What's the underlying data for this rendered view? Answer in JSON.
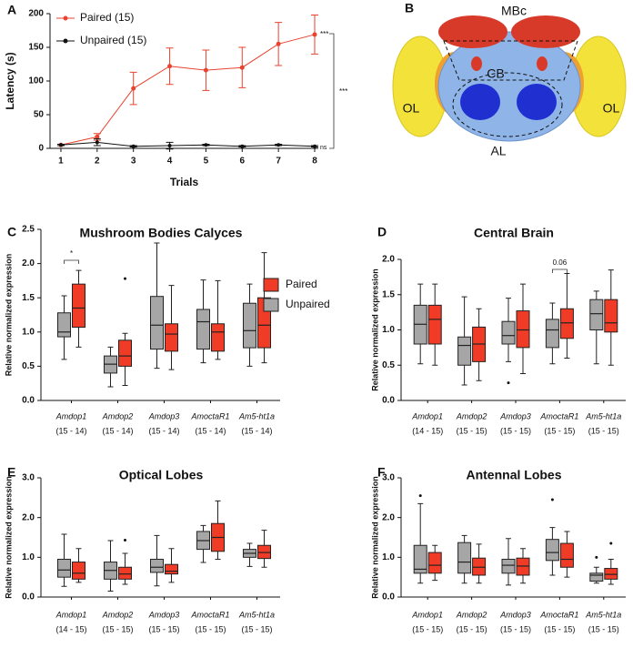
{
  "chart_data": [
    {
      "type": "line",
      "panel": "A",
      "xlabel": "Trials",
      "ylabel": "Latency (s)",
      "x": [
        1,
        2,
        3,
        4,
        5,
        6,
        7,
        8
      ],
      "xlim": [
        0.7,
        8.1
      ],
      "xticks": [
        1,
        2,
        3,
        4,
        5,
        6,
        7,
        8
      ],
      "ylim": [
        0,
        200
      ],
      "yticks": [
        0,
        50,
        100,
        150,
        200
      ],
      "legend": "top-left",
      "series": [
        {
          "name": "Paired (15)",
          "color": "#e8432f",
          "values": [
            5,
            17,
            89,
            122,
            116,
            120,
            155,
            169
          ],
          "errors": [
            1,
            5,
            24,
            27,
            30,
            30,
            32,
            29
          ]
        },
        {
          "name": "Unpaired (15)",
          "color": "#111111",
          "values": [
            5,
            9,
            3,
            4,
            5,
            3,
            5,
            3
          ],
          "errors": [
            1,
            5,
            1,
            5,
            1,
            1,
            1,
            1
          ]
        }
      ],
      "annotations": [
        "***",
        "***",
        "ns"
      ]
    },
    {
      "type": "box",
      "panel": "C",
      "title": "Mushroom Bodies Calyces",
      "ylabel": "Relative normalized expression",
      "categories": [
        "Amdop1",
        "Amdop2",
        "Amdop3",
        "AmoctaR1",
        "Am5-ht1a"
      ],
      "n_labels": [
        "(15 - 14)",
        "(15 - 14)",
        "(15 - 14)",
        "(15 - 14)",
        "(15 - 14)"
      ],
      "ylim": [
        0,
        2.5
      ],
      "yticks": [
        {
          "value": 0,
          "label": "0.0"
        },
        0.5,
        {
          "value": 1,
          "label": "1.0"
        },
        1.5,
        {
          "value": 2,
          "label": "2.0"
        },
        2.5
      ],
      "legend": "right",
      "series": [
        {
          "name": "Unpaired",
          "color": "#a6a6a6",
          "boxes": [
            {
              "min": 0.6,
              "q1": 0.93,
              "median": 1.0,
              "q3": 1.28,
              "max": 1.53,
              "outliers": []
            },
            {
              "min": 0.2,
              "q1": 0.4,
              "median": 0.53,
              "q3": 0.65,
              "max": 0.78,
              "outliers": []
            },
            {
              "min": 0.47,
              "q1": 0.75,
              "median": 1.1,
              "q3": 1.52,
              "max": 2.3,
              "outliers": []
            },
            {
              "min": 0.55,
              "q1": 0.75,
              "median": 1.15,
              "q3": 1.33,
              "max": 1.76,
              "outliers": []
            },
            {
              "min": 0.5,
              "q1": 0.77,
              "median": 1.02,
              "q3": 1.42,
              "max": 1.7,
              "outliers": []
            }
          ]
        },
        {
          "name": "Paired",
          "color": "#f03c26",
          "boxes": [
            {
              "min": 0.78,
              "q1": 1.07,
              "median": 1.35,
              "q3": 1.7,
              "max": 1.9,
              "outliers": []
            },
            {
              "min": 0.22,
              "q1": 0.5,
              "median": 0.65,
              "q3": 0.88,
              "max": 0.98,
              "outliers": [
                1.78
              ]
            },
            {
              "min": 0.45,
              "q1": 0.72,
              "median": 0.97,
              "q3": 1.12,
              "max": 1.68,
              "outliers": []
            },
            {
              "min": 0.6,
              "q1": 0.72,
              "median": 1.0,
              "q3": 1.12,
              "max": 1.75,
              "outliers": []
            },
            {
              "min": 0.55,
              "q1": 0.77,
              "median": 1.1,
              "q3": 1.5,
              "max": 2.16,
              "outliers": []
            }
          ]
        }
      ],
      "annotations": [
        "*"
      ]
    },
    {
      "type": "box",
      "panel": "D",
      "title": "Central Brain",
      "ylabel": "Relative normalized expression",
      "categories": [
        "Amdop1",
        "Amdop2",
        "Amdop3",
        "AmoctaR1",
        "Am5-ht1a"
      ],
      "n_labels": [
        "(14 - 15)",
        "(15 - 15)",
        "(15 - 15)",
        "(15 - 15)",
        "(15 - 15)"
      ],
      "ylim": [
        0,
        2.0
      ],
      "yticks": [
        {
          "value": 0,
          "label": "0.0"
        },
        0.5,
        {
          "value": 1,
          "label": "1.0"
        },
        1.5,
        {
          "value": 2,
          "label": "2.0"
        }
      ],
      "series": [
        {
          "color": "#a6a6a6",
          "boxes": [
            {
              "min": 0.52,
              "q1": 0.8,
              "median": 1.08,
              "q3": 1.35,
              "max": 1.65,
              "outliers": []
            },
            {
              "min": 0.22,
              "q1": 0.5,
              "median": 0.78,
              "q3": 0.9,
              "max": 1.47,
              "outliers": []
            },
            {
              "min": 0.55,
              "q1": 0.8,
              "median": 0.92,
              "q3": 1.12,
              "max": 1.45,
              "outliers": [
                0.25
              ]
            },
            {
              "min": 0.52,
              "q1": 0.75,
              "median": 1.0,
              "q3": 1.15,
              "max": 1.38,
              "outliers": []
            },
            {
              "min": 0.52,
              "q1": 1.0,
              "median": 1.23,
              "q3": 1.43,
              "max": 1.55,
              "outliers": []
            }
          ]
        },
        {
          "color": "#f03c26",
          "boxes": [
            {
              "min": 0.5,
              "q1": 0.8,
              "median": 1.15,
              "q3": 1.35,
              "max": 1.65,
              "outliers": []
            },
            {
              "min": 0.28,
              "q1": 0.55,
              "median": 0.8,
              "q3": 1.04,
              "max": 1.3,
              "outliers": []
            },
            {
              "min": 0.38,
              "q1": 0.75,
              "median": 1.0,
              "q3": 1.27,
              "max": 1.65,
              "outliers": []
            },
            {
              "min": 0.6,
              "q1": 0.88,
              "median": 1.1,
              "q3": 1.3,
              "max": 1.8,
              "outliers": []
            },
            {
              "min": 0.5,
              "q1": 0.97,
              "median": 1.1,
              "q3": 1.43,
              "max": 1.85,
              "outliers": []
            }
          ]
        }
      ],
      "annotations": [
        "0.06"
      ]
    },
    {
      "type": "box",
      "panel": "E",
      "title": "Optical Lobes",
      "ylabel": "Relative normalized expression",
      "categories": [
        "Amdop1",
        "Amdop2",
        "Amdop3",
        "AmoctaR1",
        "Am5-ht1a"
      ],
      "n_labels": [
        "(14 - 15)",
        "(15 - 15)",
        "(15 - 15)",
        "(15 - 15)",
        "(15 - 15)"
      ],
      "ylim": [
        0,
        3.0
      ],
      "yticks": [
        {
          "value": 0,
          "label": "0.0"
        },
        {
          "value": 1,
          "label": "1.0"
        },
        {
          "value": 2,
          "label": "2.0"
        },
        {
          "value": 3,
          "label": "3.0"
        }
      ],
      "series": [
        {
          "color": "#a6a6a6",
          "boxes": [
            {
              "min": 0.27,
              "q1": 0.5,
              "median": 0.68,
              "q3": 0.95,
              "max": 1.58,
              "outliers": []
            },
            {
              "min": 0.15,
              "q1": 0.45,
              "median": 0.67,
              "q3": 0.88,
              "max": 1.42,
              "outliers": []
            },
            {
              "min": 0.28,
              "q1": 0.62,
              "median": 0.75,
              "q3": 0.95,
              "max": 1.55,
              "outliers": []
            },
            {
              "min": 0.87,
              "q1": 1.2,
              "median": 1.42,
              "q3": 1.65,
              "max": 1.8,
              "outliers": []
            },
            {
              "min": 0.77,
              "q1": 1.0,
              "median": 1.1,
              "q3": 1.2,
              "max": 1.35,
              "outliers": []
            }
          ]
        },
        {
          "color": "#f03c26",
          "boxes": [
            {
              "min": 0.37,
              "q1": 0.45,
              "median": 0.6,
              "q3": 0.88,
              "max": 1.22,
              "outliers": []
            },
            {
              "min": 0.32,
              "q1": 0.45,
              "median": 0.58,
              "q3": 0.75,
              "max": 1.1,
              "outliers": [
                1.43
              ]
            },
            {
              "min": 0.37,
              "q1": 0.58,
              "median": 0.65,
              "q3": 0.82,
              "max": 1.22,
              "outliers": []
            },
            {
              "min": 0.95,
              "q1": 1.15,
              "median": 1.5,
              "q3": 1.85,
              "max": 2.42,
              "outliers": []
            },
            {
              "min": 0.75,
              "q1": 0.97,
              "median": 1.12,
              "q3": 1.3,
              "max": 1.68,
              "outliers": []
            }
          ]
        }
      ]
    },
    {
      "type": "box",
      "panel": "F",
      "title": "Antennal Lobes",
      "ylabel": "Relative normalized expression",
      "categories": [
        "Amdop1",
        "Amdop2",
        "Amdop3",
        "AmoctaR1",
        "Am5-ht1a"
      ],
      "n_labels": [
        "(15 - 15)",
        "(15 - 15)",
        "(15 - 15)",
        "(15 - 15)",
        "(15 - 15)"
      ],
      "ylim": [
        0,
        3.0
      ],
      "yticks": [
        {
          "value": 0,
          "label": "0.0"
        },
        {
          "value": 1,
          "label": "1.0"
        },
        {
          "value": 2,
          "label": "2.0"
        },
        {
          "value": 3,
          "label": "3.0"
        }
      ],
      "series": [
        {
          "color": "#a6a6a6",
          "boxes": [
            {
              "min": 0.35,
              "q1": 0.6,
              "median": 0.7,
              "q3": 1.3,
              "max": 2.35,
              "outliers": [
                2.55
              ]
            },
            {
              "min": 0.35,
              "q1": 0.6,
              "median": 0.88,
              "q3": 1.37,
              "max": 1.55,
              "outliers": []
            },
            {
              "min": 0.3,
              "q1": 0.6,
              "median": 0.8,
              "q3": 0.95,
              "max": 1.47,
              "outliers": []
            },
            {
              "min": 0.55,
              "q1": 0.92,
              "median": 1.12,
              "q3": 1.45,
              "max": 1.75,
              "outliers": [
                2.45
              ]
            },
            {
              "min": 0.35,
              "q1": 0.4,
              "median": 0.55,
              "q3": 0.6,
              "max": 0.75,
              "outliers": [
                1.0
              ]
            }
          ]
        },
        {
          "color": "#f03c26",
          "boxes": [
            {
              "min": 0.42,
              "q1": 0.6,
              "median": 0.8,
              "q3": 1.12,
              "max": 1.3,
              "outliers": []
            },
            {
              "min": 0.35,
              "q1": 0.55,
              "median": 0.75,
              "q3": 0.98,
              "max": 1.33,
              "outliers": []
            },
            {
              "min": 0.35,
              "q1": 0.55,
              "median": 0.78,
              "q3": 0.98,
              "max": 1.22,
              "outliers": []
            },
            {
              "min": 0.5,
              "q1": 0.75,
              "median": 0.95,
              "q3": 1.35,
              "max": 1.65,
              "outliers": []
            },
            {
              "min": 0.32,
              "q1": 0.45,
              "median": 0.57,
              "q3": 0.72,
              "max": 0.95,
              "outliers": [
                1.35
              ]
            }
          ]
        }
      ]
    }
  ],
  "panel_b": {
    "panel": "B",
    "labels": [
      "MBc",
      "CB",
      "OL",
      "OL",
      "AL"
    ]
  }
}
